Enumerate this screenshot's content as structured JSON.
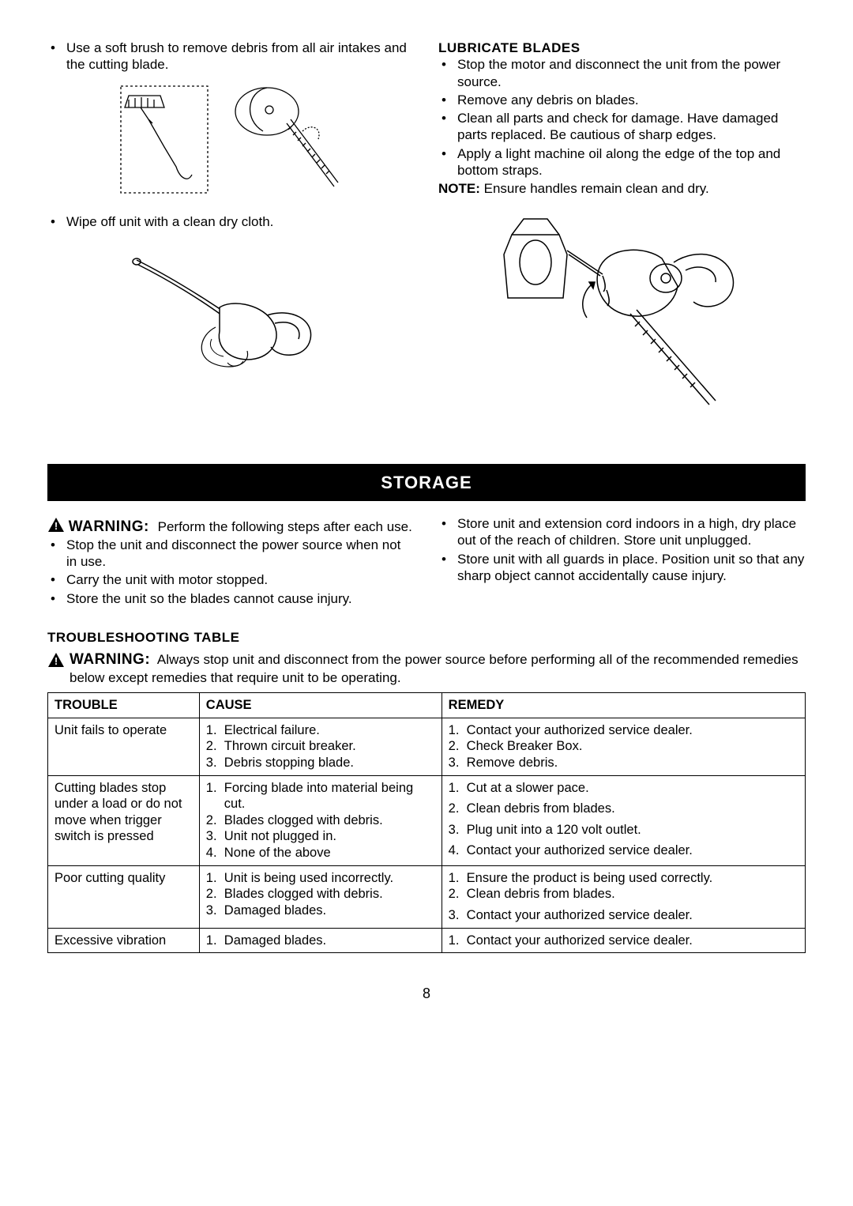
{
  "leftCol": {
    "bullet1": "Use a soft brush to remove debris from all air intakes and the cutting blade.",
    "bullet2": "Wipe off unit with a clean dry cloth."
  },
  "rightCol": {
    "heading": "LUBRICATE BLADES",
    "bullets": [
      "Stop the motor and disconnect the unit from the power source.",
      "Remove any debris on blades.",
      "Clean all parts and check for damage. Have damaged parts replaced. Be cautious of sharp edges.",
      "Apply a light machine oil along the edge of the top and bottom straps."
    ],
    "noteLabel": "NOTE:",
    "noteText": " Ensure handles remain clean and dry."
  },
  "storage": {
    "barTitle": "STORAGE",
    "warningWord": "WARNING:",
    "warningLead": "Perform the following steps after each use.",
    "leftBullets": [
      "Stop the unit and disconnect the power source when not in use.",
      "Carry the unit with motor stopped.",
      "Store the unit so the blades cannot cause injury."
    ],
    "rightBullets": [
      "Store unit  and extension cord indoors in a high, dry place out of the reach of children. Store unit unplugged.",
      "Store unit with all guards in place. Position unit so that any sharp object cannot accidentally cause injury."
    ]
  },
  "troubleshoot": {
    "title": "TROUBLESHOOTING TABLE",
    "warningWord": "WARNING:",
    "warningText": "Always stop unit and disconnect from the power source before performing all of the recommended remedies below except remedies that require unit to be operating.",
    "columns": [
      "TROUBLE",
      "CAUSE",
      "REMEDY"
    ],
    "rows": [
      {
        "trouble": "Unit fails to operate",
        "causes": [
          "Electrical failure.",
          "Thrown circuit breaker.",
          "Debris stopping blade."
        ],
        "remedies": [
          "Contact your authorized service dealer.",
          "Check Breaker Box.",
          "Remove debris."
        ]
      },
      {
        "trouble": "Cutting blades stop under a load or do not move when trigger switch is pressed",
        "causes": [
          "Forcing blade into material being cut.",
          "Blades clogged with debris.",
          "Unit not plugged in.",
          "None of the above"
        ],
        "remedies": [
          "Cut at a slower pace.",
          "Clean debris from blades.",
          "Plug unit into a 120 volt outlet.",
          "Contact your authorized service dealer."
        ],
        "remedySpacing": true
      },
      {
        "trouble": "Poor cutting quality",
        "causes": [
          "Unit is being used incorrectly.",
          "Blades clogged with debris.",
          "Damaged blades."
        ],
        "remedies": [
          "Ensure the product is being used correctly.",
          "Clean debris from blades.",
          "Contact your authorized service dealer."
        ],
        "remedySpacing2": true
      },
      {
        "trouble": "Excessive vibration",
        "causes": [
          "Damaged blades."
        ],
        "remedies": [
          "Contact your authorized service dealer."
        ]
      }
    ]
  },
  "pageNumber": "8",
  "table_style": {
    "border_color": "#000000",
    "header_bg": "#ffffff",
    "col_widths": [
      "20%",
      "32%",
      "48%"
    ]
  },
  "colors": {
    "text": "#000000",
    "bg": "#ffffff",
    "bar_bg": "#000000",
    "bar_fg": "#ffffff"
  },
  "fonts": {
    "body_size": 17,
    "heading_size": 17,
    "bar_size": 22,
    "table_size": 16.5
  }
}
